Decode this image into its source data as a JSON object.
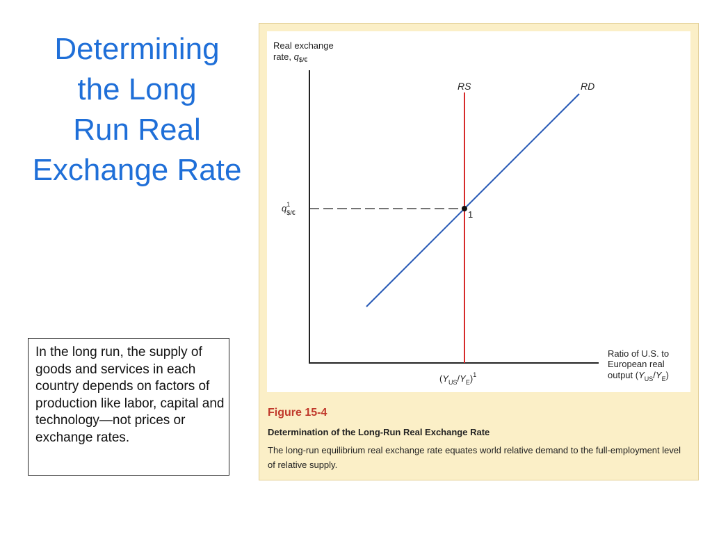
{
  "slide": {
    "title_lines": [
      "Determining",
      "the Long",
      "Run Real",
      "Exchange Rate"
    ],
    "note": "In the long run, the supply of goods and services in each country depends on factors of production like labor, capital and technology—not prices or exchange rates."
  },
  "figure": {
    "y_axis_label_line1": "Real exchange",
    "y_axis_label_line2_prefix": "rate, ",
    "y_axis_symbol": "q",
    "y_axis_symbol_sub": "$/€",
    "x_axis_label_line1": "Ratio of U.S. to",
    "x_axis_label_line2": "European real",
    "x_axis_label_line3_prefix": "output (",
    "x_axis_label_line3_suffix": ")",
    "ratio_Y": "Y",
    "ratio_sub_us": "US",
    "ratio_slash": "/",
    "ratio_sub_e": "E",
    "curve_rs": "RS",
    "curve_rd": "RD",
    "eq_q_symbol": "q",
    "eq_q_sup": "1",
    "eq_q_sub": "$/€",
    "eq_point_label": "1",
    "x_tick_open": "(",
    "x_tick_close": ")",
    "x_tick_sup": "1",
    "colors": {
      "rs": "#d62a2a",
      "rd": "#2457b5",
      "axis": "#222222"
    },
    "caption_number": "Figure 15-4",
    "caption_title": "Determination of the Long-Run Real Exchange Rate",
    "caption_text": "The long-run equilibrium real exchange rate equates world relative demand to the full-employment level of relative supply."
  }
}
